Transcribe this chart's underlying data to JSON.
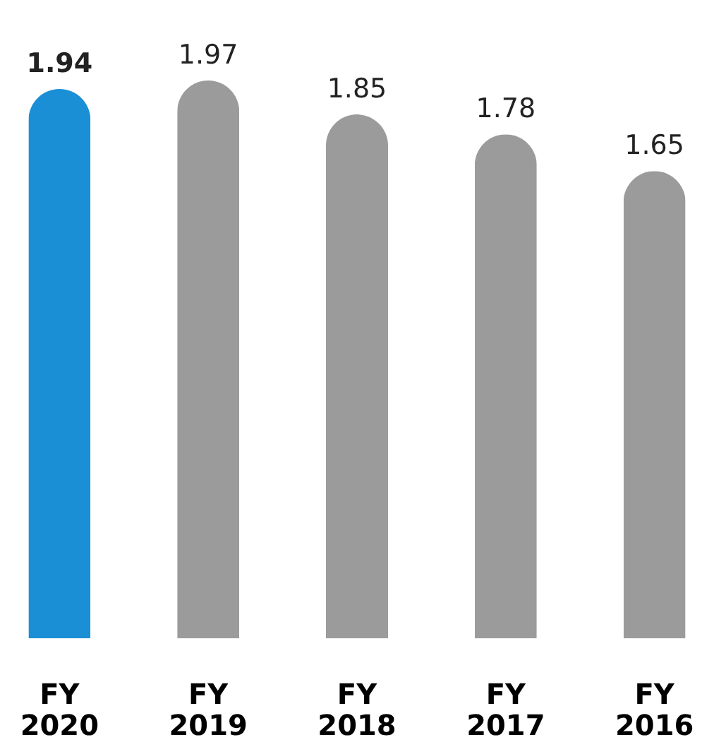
{
  "chart_data": {
    "type": "bar",
    "categories": [
      "FY 2020",
      "FY 2019",
      "FY 2018",
      "FY 2017",
      "FY 2016"
    ],
    "values": [
      1.94,
      1.97,
      1.85,
      1.78,
      1.65
    ],
    "colors": [
      "#1a8fd6",
      "#9b9b9b",
      "#9b9b9b",
      "#9b9b9b",
      "#9b9b9b"
    ],
    "data_labels": true
  }
}
